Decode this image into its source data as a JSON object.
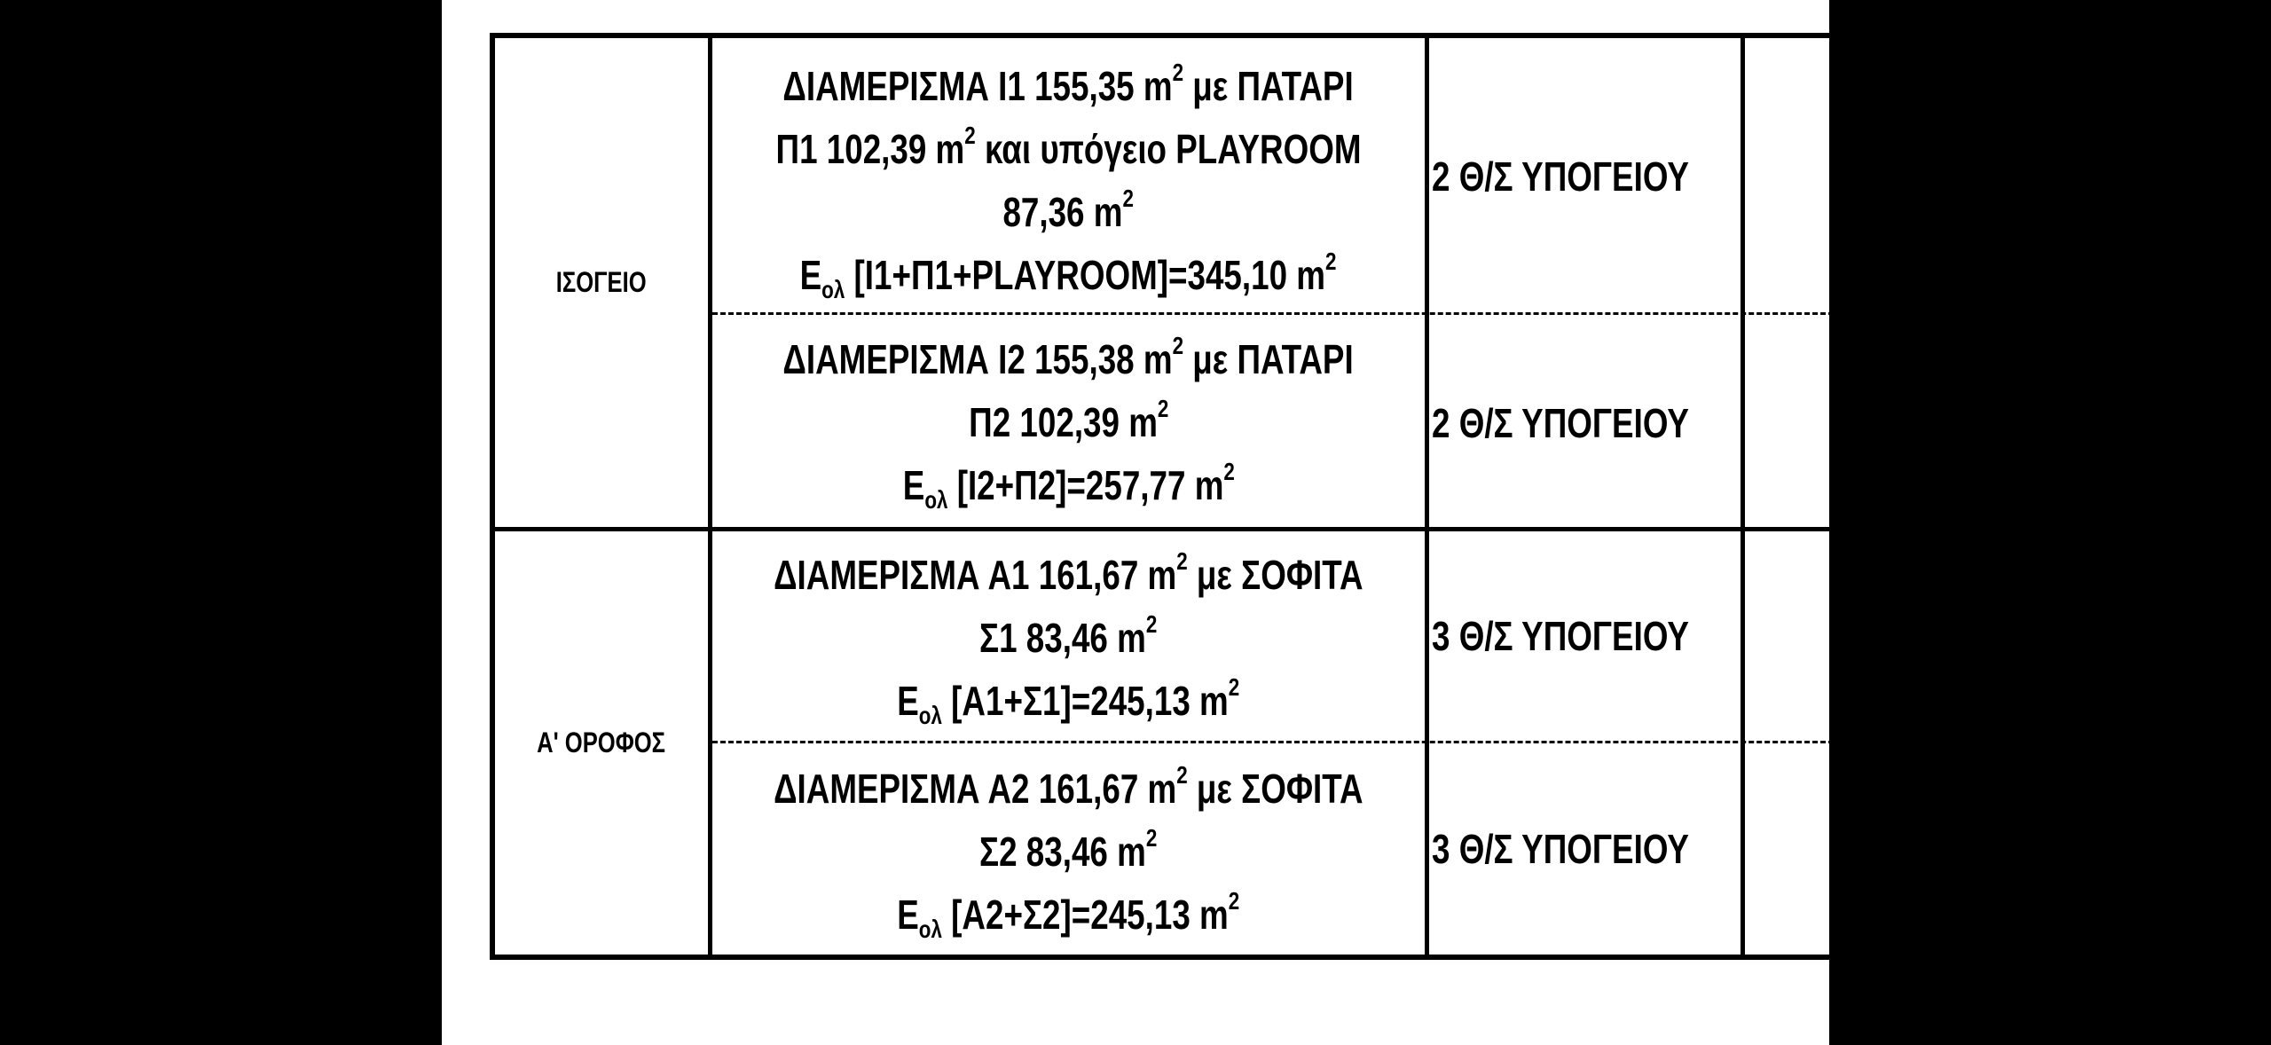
{
  "rows": [
    {
      "floor": "ΙΣΟΓΕΙΟ",
      "units": [
        {
          "lines": [
            {
              "pre": "ΔΙΑΜΕΡΙΣΜΑ Ι1 155,35 m",
              "sup": "2",
              "post": " με ΠΑΤΑΡΙ"
            },
            {
              "pre": "Π1 102,39 m",
              "sup": "2",
              "post": " και υπόγειο PLAYROOM"
            },
            {
              "pre": "87,36 m",
              "sup": "2",
              "post": ""
            },
            {
              "pre": "E",
              "sub": "ολ",
              "mid": " [Ι1+Π1+PLAYROOM]=345,10 m",
              "sup": "2"
            }
          ],
          "parking": "2 Θ/Σ ΥΠΟΓΕΙΟΥ"
        },
        {
          "lines": [
            {
              "pre": "ΔΙΑΜΕΡΙΣΜΑ Ι2 155,38 m",
              "sup": "2",
              "post": " με ΠΑΤΑΡΙ"
            },
            {
              "pre": "Π2 102,39 m",
              "sup": "2",
              "post": ""
            },
            {
              "pre": "E",
              "sub": "ολ",
              "mid": " [Ι2+Π2]=257,77 m",
              "sup": "2"
            }
          ],
          "parking": "2 Θ/Σ ΥΠΟΓΕΙΟΥ"
        }
      ]
    },
    {
      "floor": "Α' ΟΡΟΦΟΣ",
      "units": [
        {
          "lines": [
            {
              "pre": "ΔΙΑΜΕΡΙΣΜΑ Α1 161,67 m",
              "sup": "2",
              "post": " με ΣΟΦΙΤΑ"
            },
            {
              "pre": "Σ1 83,46 m",
              "sup": "2",
              "post": ""
            },
            {
              "pre": "E",
              "sub": "ολ",
              "mid": " [Α1+Σ1]=245,13 m",
              "sup": "2"
            }
          ],
          "parking": "3 Θ/Σ ΥΠΟΓΕΙΟΥ"
        },
        {
          "lines": [
            {
              "pre": "ΔΙΑΜΕΡΙΣΜΑ Α2 161,67 m",
              "sup": "2",
              "post": " με ΣΟΦΙΤΑ"
            },
            {
              "pre": "Σ2 83,46 m",
              "sup": "2",
              "post": ""
            },
            {
              "pre": "E",
              "sub": "ολ",
              "mid": " [Α2+Σ2]=245,13 m",
              "sup": "2"
            }
          ],
          "parking": "3 Θ/Σ ΥΠΟΓΕΙΟΥ"
        }
      ]
    }
  ]
}
